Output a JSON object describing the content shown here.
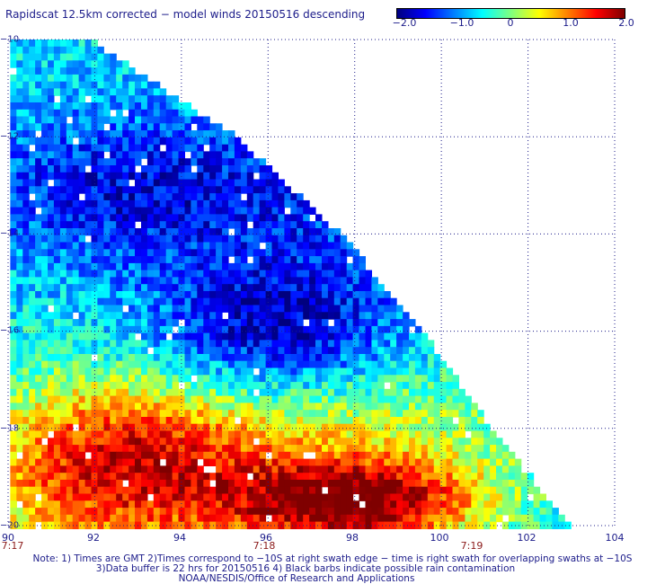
{
  "title": "Rapidscat 12.5km corrected − model winds 20150516 descending",
  "colorbar": {
    "min": -2.0,
    "max": 2.0,
    "tick_labels": [
      "−2.0",
      "−1.0",
      "0",
      "1.0",
      "2.0"
    ],
    "colors": [
      "#00007f",
      "#0000ff",
      "#007fff",
      "#00ffff",
      "#7fff7f",
      "#ffff00",
      "#ff7f00",
      "#ff0000",
      "#7f0000"
    ]
  },
  "axes": {
    "x_ticks": [
      "90",
      "92",
      "94",
      "96",
      "98",
      "100",
      "102",
      "104"
    ],
    "y_ticks": [
      "−10",
      "−12",
      "−14",
      "−16",
      "−18",
      "−20"
    ],
    "xlim": [
      90,
      104
    ],
    "ylim": [
      -20,
      -10
    ],
    "grid": "dotted"
  },
  "time_labels": [
    "7:17",
    "7:18",
    "7:19"
  ],
  "notes": [
    "Note: 1) Times are GMT 2)Times correspond to −10S at right swath edge − time is right swath for overlapping swaths at −10S",
    "3)Data buffer is 22 hrs for 20150516 4) Black barbs indicate possible rain contamination",
    "NOAA/NESDIS/Office of Research and Applications"
  ],
  "chart_data": {
    "type": "heatmap",
    "title": "Rapidscat 12.5km corrected − model winds 20150516 descending",
    "xlim": [
      90,
      104
    ],
    "ylim": [
      -20,
      -10
    ],
    "value_range": [
      -2.0,
      2.0
    ],
    "swath_right_edge": [
      [
        -10,
        91.8
      ],
      [
        -12,
        95.2
      ],
      [
        -14,
        97.6
      ],
      [
        -16,
        99.5
      ],
      [
        -18,
        101.1
      ],
      [
        -20,
        102.9
      ]
    ],
    "regions": [
      {
        "lon": [
          90,
          96
        ],
        "lat": [
          -12,
          -14
        ],
        "value": -1.6
      },
      {
        "lon": [
          94,
          98
        ],
        "lat": [
          -15,
          -17
        ],
        "value": -1.8
      },
      {
        "lon": [
          96,
          99
        ],
        "lat": [
          -12,
          -15
        ],
        "value": -0.9
      },
      {
        "lon": [
          90,
          95
        ],
        "lat": [
          -17.5,
          -20
        ],
        "value": 1.6
      },
      {
        "lon": [
          96,
          100
        ],
        "lat": [
          -19,
          -20
        ],
        "value": 1.8
      },
      {
        "lon": [
          95,
          101
        ],
        "lat": [
          -17,
          -19
        ],
        "value": 0.3
      }
    ]
  }
}
